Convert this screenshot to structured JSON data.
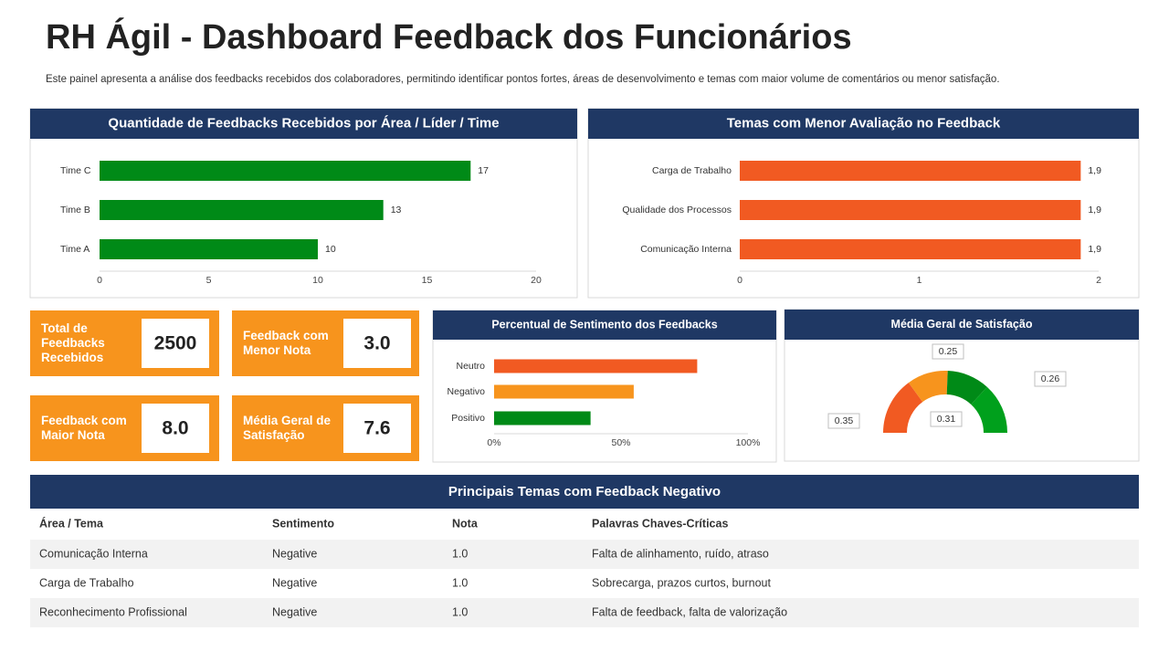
{
  "header": {
    "title": "RH Ágil - Dashboard Feedback dos Funcionários",
    "subtitle": "Este painel apresenta a análise dos feedbacks recebidos dos colaboradores, permitindo identificar pontos fortes, áreas de desenvolvimento e temas com maior volume de comentários ou menor satisfação."
  },
  "chart_data": [
    {
      "type": "bar",
      "orientation": "horizontal",
      "title": "Quantidade de Feedbacks Recebidos por Área / Líder / Time",
      "categories": [
        "Time A",
        "Time B",
        "Time C"
      ],
      "values": [
        10,
        13,
        17
      ],
      "color": "#008a17",
      "xlim": [
        0,
        20
      ],
      "xticks": [
        0,
        5,
        10,
        15,
        20
      ]
    },
    {
      "type": "bar",
      "orientation": "horizontal",
      "title": "Temas com Menor Avaliação no Feedback",
      "categories": [
        "Comunicação Interna",
        "Qualidade dos Processos",
        "Carga de Trabalho"
      ],
      "values": [
        1.9,
        1.9,
        1.9
      ],
      "value_labels": [
        "1,9",
        "1,9",
        "1,9"
      ],
      "color": "#f15a22",
      "xlim": [
        0,
        2
      ],
      "xticks": [
        0,
        1,
        2
      ]
    },
    {
      "type": "bar",
      "orientation": "horizontal",
      "title": "Percentual de Sentimento dos Feedbacks",
      "categories": [
        "Positivo",
        "Negativo",
        "Neutro"
      ],
      "values": [
        38,
        55,
        80
      ],
      "colors": [
        "#008a17",
        "#f7941d",
        "#f15a22"
      ],
      "xlim": [
        0,
        100
      ],
      "xticks": [
        {
          "value": 0,
          "label": "0%"
        },
        {
          "value": 50,
          "label": "50%"
        },
        {
          "value": 100,
          "label": "100%"
        }
      ]
    },
    {
      "type": "donut",
      "title": "Média Geral de Satisfação",
      "values": [
        0.35,
        0.25,
        0.26,
        0.31
      ],
      "colors": [
        "#f15a22",
        "#f7941d",
        "#008a17",
        "#00a01c"
      ]
    }
  ],
  "kpis": [
    {
      "label": "Total de Feedbacks Recebidos",
      "value": "2500"
    },
    {
      "label": "Feedback com Menor Nota",
      "value": "3.0"
    },
    {
      "label": "Feedback com Maior Nota",
      "value": "8.0"
    },
    {
      "label": "Média Geral de Satisfação",
      "value": "7.6"
    }
  ],
  "table": {
    "title": "Principais Temas com Feedback Negativo",
    "columns": [
      "Área / Tema",
      "Sentimento",
      "Nota",
      "Palavras Chaves-Críticas"
    ],
    "rows": [
      [
        "Comunicação Interna",
        "Negative",
        "1.0",
        "Falta de alinhamento, ruído, atraso"
      ],
      [
        "Carga de Trabalho",
        "Negative",
        "1.0",
        "Sobrecarga, prazos curtos, burnout"
      ],
      [
        "Reconhecimento Profissional",
        "Negative",
        "1.0",
        "Falta de feedback, falta de valorização"
      ]
    ]
  }
}
